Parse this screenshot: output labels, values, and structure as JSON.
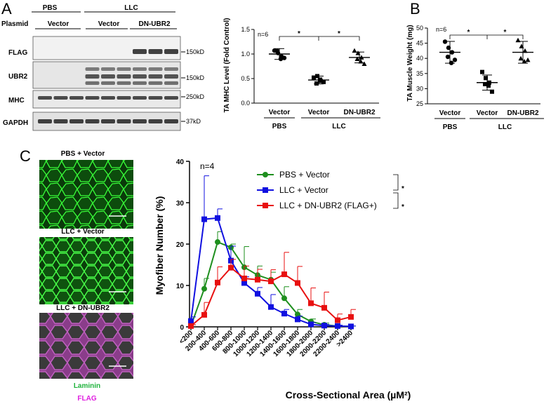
{
  "panels": {
    "a": "A",
    "b": "B",
    "c": "C"
  },
  "blot": {
    "header_groups": [
      "PBS",
      "LLC"
    ],
    "plasmid_label": "Plasmid",
    "plasmid_groups": [
      "Vector",
      "Vector",
      "DN-UBR2"
    ],
    "rows": [
      {
        "name": "FLAG",
        "marker": "150kD"
      },
      {
        "name": "UBR2",
        "marker": "150kD"
      },
      {
        "name": "MHC",
        "marker": "250kD"
      },
      {
        "name": "GAPDH",
        "marker": "37kD"
      }
    ]
  },
  "chart_data": [
    {
      "type": "scatter",
      "ylabel": "TA MHC Level (Fold Control)",
      "ylim": [
        0,
        1.5
      ],
      "yticks": [
        "0.0",
        "0.5",
        "1.0",
        "1.5"
      ],
      "categories": [
        "Vector",
        "Vector",
        "DN-UBR2"
      ],
      "group_labels": [
        "PBS",
        "LLC"
      ],
      "annotation": "n=6",
      "significance": [
        "*",
        "*"
      ],
      "series": [
        {
          "marker": "circle",
          "mean": 1.0,
          "sd": 0.11,
          "points": [
            1.07,
            1.02,
            0.95,
            1.06,
            0.9,
            0.92
          ]
        },
        {
          "marker": "square",
          "mean": 0.47,
          "sd": 0.08,
          "points": [
            0.52,
            0.55,
            0.45,
            0.4,
            0.48,
            0.43
          ]
        },
        {
          "marker": "triangle",
          "mean": 0.93,
          "sd": 0.11,
          "points": [
            1.07,
            1.02,
            0.93,
            0.9,
            0.85,
            0.8
          ]
        }
      ]
    },
    {
      "type": "scatter",
      "ylabel": "TA Muscle Weight (mg)",
      "ylim": [
        25,
        50
      ],
      "yticks": [
        "25",
        "30",
        "35",
        "40",
        "45",
        "50"
      ],
      "categories": [
        "Vector",
        "Vector",
        "DN-UBR2"
      ],
      "group_labels": [
        "PBS",
        "LLC"
      ],
      "annotation": "n=6",
      "significance": [
        "*",
        "*"
      ],
      "series": [
        {
          "marker": "circle",
          "mean": 42,
          "sd": 3.6,
          "points": [
            45.5,
            43.5,
            42,
            40.5,
            38.5,
            39.5
          ]
        },
        {
          "marker": "square",
          "mean": 32,
          "sd": 2.5,
          "points": [
            35.5,
            33.5,
            32,
            31.5,
            31,
            29
          ]
        },
        {
          "marker": "triangle",
          "mean": 42,
          "sd": 3.6,
          "points": [
            46,
            44,
            42.5,
            40,
            39,
            39.5
          ]
        }
      ]
    },
    {
      "type": "line",
      "xlabel": "Cross-Sectional Area (µM²)",
      "ylabel": "Myofiber Number (%)",
      "ylim": [
        0,
        40
      ],
      "yticks": [
        "0",
        "10",
        "20",
        "30",
        "40"
      ],
      "annotation": "n=4",
      "categories": [
        "<200",
        "200-400",
        "400-600",
        "600-800",
        "800-1000",
        "1000-1200",
        "1200-1400",
        "1400-1600",
        "1600-1800",
        "1800-2000",
        "2000-2200",
        "2200-2400",
        ">2400"
      ],
      "significance": [
        "*",
        "*"
      ],
      "series": [
        {
          "name": "PBS + Vector",
          "color": "#1e8f1e",
          "marker": "circle",
          "values": [
            0.2,
            9.2,
            20.5,
            19.2,
            14.4,
            12.5,
            11.4,
            6.9,
            3.0,
            1.3,
            0.5,
            0.2,
            0.1
          ],
          "errors": [
            0.3,
            2.5,
            2.5,
            0.8,
            5.0,
            2.2,
            1.8,
            2.8,
            1.2,
            0.6,
            0.4,
            0.2,
            0.1
          ]
        },
        {
          "name": "LLC + Vector",
          "color": "#1010e0",
          "marker": "square",
          "values": [
            1.4,
            26.0,
            26.3,
            16.0,
            10.6,
            8.0,
            4.8,
            3.2,
            1.8,
            0.6,
            0.3,
            0.2,
            0.1
          ],
          "errors": [
            1.0,
            10.5,
            2.2,
            3.5,
            1.5,
            1.5,
            3.0,
            1.0,
            0.8,
            0.4,
            0.3,
            0.2,
            0.1
          ]
        },
        {
          "name": "LLC + DN-UBR2 (FLAG+)",
          "color": "#e81010",
          "marker": "square",
          "values": [
            0.2,
            2.9,
            10.7,
            14.3,
            11.7,
            11.4,
            11.0,
            12.7,
            10.6,
            5.7,
            4.6,
            1.6,
            2.4
          ],
          "errors": [
            0.3,
            3.0,
            3.8,
            2.0,
            3.0,
            2.5,
            2.8,
            5.3,
            4.0,
            3.7,
            3.8,
            1.5,
            1.8
          ]
        }
      ]
    }
  ],
  "micrographs": {
    "titles": [
      "PBS + Vector",
      "LLC + Vector",
      "LLC + DN-UBR2"
    ],
    "stain_labels": [
      {
        "text": "Laminin",
        "color": "#1fb33c"
      },
      {
        "text": "FLAG",
        "color": "#e020e0"
      }
    ]
  }
}
